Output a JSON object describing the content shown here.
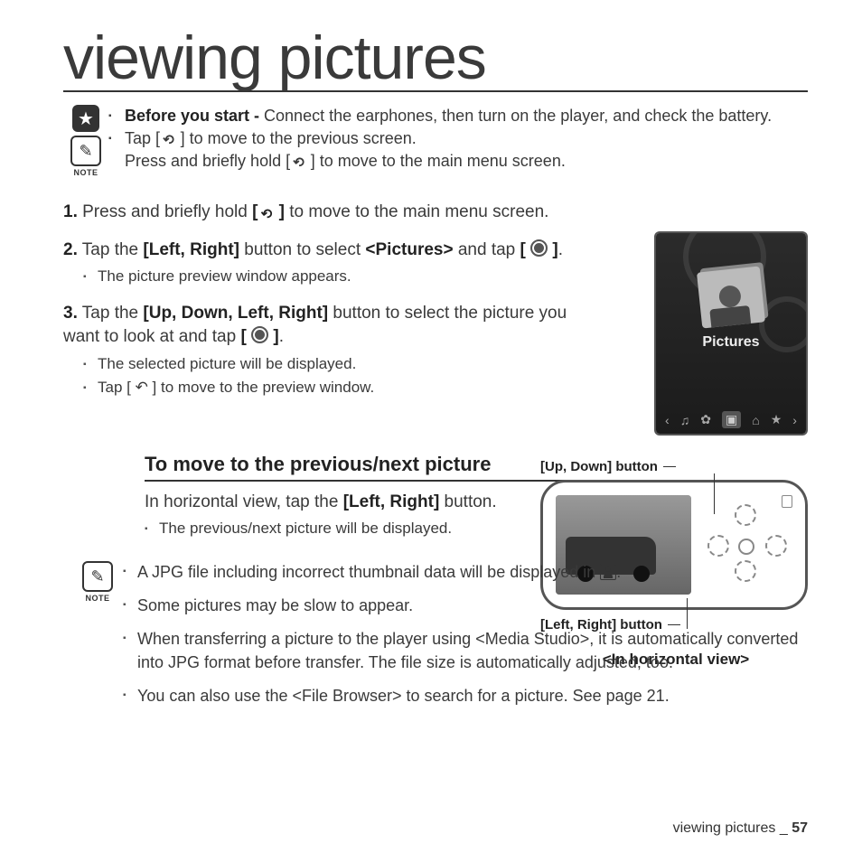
{
  "page_title": "viewing pictures",
  "intro": {
    "before_bold": "Before you start - ",
    "before_rest": "Connect the earphones, then turn on the player, and check the battery.",
    "tip1a": "Tap [ ",
    "tip1b": " ] to move to the previous screen.",
    "tip2a": "Press and briefly hold [ ",
    "tip2b": " ] to move to the main menu screen.",
    "note_label": "NOTE"
  },
  "steps": [
    {
      "num": "1.",
      "pre": " Press and briefly hold ",
      "bold1": "[ ",
      "bold2": " ]",
      "post": " to move to the main menu screen.",
      "subs": []
    },
    {
      "num": "2.",
      "pre": " Tap the ",
      "bold1": "[Left, Right]",
      "mid": " button to select ",
      "bold2": "<Pictures>",
      "mid2": " and tap ",
      "bold3": "[ ",
      "bold4": " ]",
      "post": ".",
      "subs": [
        "The picture preview window appears."
      ]
    },
    {
      "num": "3.",
      "pre": " Tap the ",
      "bold1": "[Up, Down, Left, Right]",
      "mid": " button to select the picture you want to look at and tap ",
      "bold3": "[ ",
      "bold4": " ]",
      "post": ".",
      "subs": [
        "The selected picture will be displayed.",
        "Tap [ ↶ ] to move to the preview window."
      ]
    }
  ],
  "device": {
    "label": "Pictures",
    "menu": [
      "‹",
      "♫",
      "✿",
      "▣",
      "⌂",
      "★",
      "›"
    ]
  },
  "sub": {
    "heading": "To move to the previous/next picture",
    "p1a": "In horizontal view, tap the ",
    "p1b": "[Left, Right]",
    "p1c": " button.",
    "bullet1": "The previous/next picture will be displayed.",
    "updown_label": "[Up, Down] button",
    "lr_label": "[Left, Right] button",
    "caption": "<In horizontal view>"
  },
  "notes": {
    "label": "NOTE",
    "n1a": "A JPG file including incorrect thumbnail data will be displayed in ",
    "n1b": ".",
    "n2": "Some pictures may be slow to appear.",
    "n3": "When transferring a picture to the player using <Media Studio>, it is automatically converted into JPG format before transfer. The file size is automatically adjusted, too.",
    "n4": "You can also use the <File Browser> to search for a picture. See page 21."
  },
  "footer": {
    "text": "viewing pictures _ ",
    "page": "57"
  },
  "colors": {
    "text": "#3a3a3a",
    "heading": "#222222",
    "device_bg_top": "#2b2b2b",
    "device_bg_bottom": "#1b1b1b"
  },
  "fontsizes_pt": {
    "title": 51,
    "body": 14,
    "sub_heading": 17,
    "note_label": 7,
    "footer": 12
  }
}
